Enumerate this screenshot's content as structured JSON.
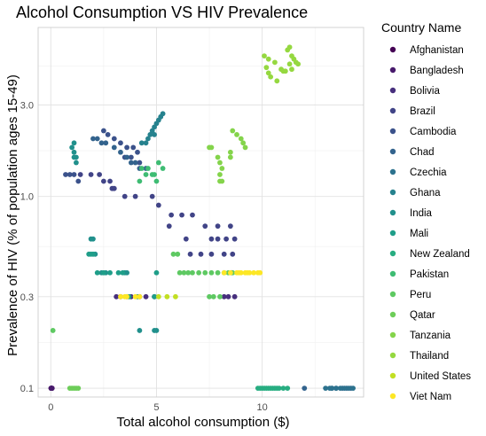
{
  "chart_data": {
    "type": "scatter",
    "title": "Alcohol Consumption VS HIV Prevalence",
    "xlabel": "Total alcohol consumption ($)",
    "ylabel": "Prevalence of HIV (% of population ages 15-49)",
    "x_scale": "linear",
    "y_scale": "log10",
    "xlim": [
      -0.6,
      14.8
    ],
    "ylim": [
      0.09,
      7.6
    ],
    "x_ticks": [
      0,
      5,
      10
    ],
    "x_tick_labels": [
      "0",
      "5",
      "10"
    ],
    "y_ticks": [
      0.1,
      0.3,
      1.0,
      3.0
    ],
    "y_tick_labels": [
      "0.1",
      "0.3",
      "1.0",
      "3.0"
    ],
    "grid": true,
    "legend_placement": "right",
    "legend_title": "Country Name",
    "series": [
      {
        "name": "Afghanistan",
        "color": "#440154",
        "points": [
          [
            0.01,
            0.1
          ],
          [
            0.02,
            0.1
          ],
          [
            0.03,
            0.1
          ],
          [
            0.05,
            0.1
          ],
          [
            0.06,
            0.1
          ]
        ]
      },
      {
        "name": "Bangladesh",
        "color": "#481A6C",
        "points": [
          [
            0.01,
            0.1
          ],
          [
            0.02,
            0.1
          ],
          [
            0.03,
            0.1
          ],
          [
            0.05,
            0.1
          ],
          [
            0.06,
            0.1
          ],
          [
            8.55,
            0.4
          ]
        ]
      },
      {
        "name": "Bolivia",
        "color": "#472F7D",
        "points": [
          [
            3.1,
            0.3
          ],
          [
            3.3,
            0.3
          ],
          [
            3.6,
            0.3
          ],
          [
            3.8,
            0.3
          ],
          [
            4.2,
            0.3
          ],
          [
            4.5,
            0.3
          ],
          [
            4.9,
            0.3
          ],
          [
            8.2,
            0.3
          ],
          [
            8.4,
            0.3
          ],
          [
            8.7,
            0.3
          ]
        ]
      },
      {
        "name": "Brazil",
        "color": "#414487",
        "points": [
          [
            1.4,
            1.3
          ],
          [
            1.9,
            1.3
          ],
          [
            2.3,
            1.3
          ],
          [
            2.5,
            1.2
          ],
          [
            2.8,
            1.2
          ],
          [
            2.9,
            1.1
          ],
          [
            3.0,
            1.1
          ],
          [
            3.5,
            1.0
          ],
          [
            4.0,
            1.0
          ],
          [
            4.8,
            1.0
          ],
          [
            5.1,
            0.9
          ],
          [
            5.7,
            0.8
          ],
          [
            6.2,
            0.8
          ],
          [
            6.7,
            0.8
          ],
          [
            7.3,
            0.7
          ],
          [
            7.9,
            0.6
          ],
          [
            8.3,
            0.6
          ],
          [
            8.7,
            0.6
          ],
          [
            7.6,
            0.6
          ],
          [
            6.4,
            0.6
          ],
          [
            7.9,
            0.7
          ],
          [
            8.5,
            0.7
          ],
          [
            8.6,
            0.5
          ],
          [
            8.2,
            0.5
          ],
          [
            7.6,
            0.5
          ],
          [
            7.1,
            0.5
          ],
          [
            6.6,
            0.5
          ],
          [
            5.6,
            0.7
          ]
        ]
      },
      {
        "name": "Cambodia",
        "color": "#3B528B",
        "points": [
          [
            0.7,
            1.3
          ],
          [
            0.9,
            1.3
          ],
          [
            1.1,
            1.3
          ],
          [
            1.3,
            1.2
          ],
          [
            2.5,
            2.2
          ],
          [
            2.7,
            2.1
          ],
          [
            3.0,
            2.0
          ],
          [
            3.3,
            1.9
          ],
          [
            3.6,
            1.8
          ],
          [
            3.9,
            1.8
          ],
          [
            4.1,
            1.7
          ],
          [
            4.2,
            1.5
          ],
          [
            3.8,
            1.6
          ],
          [
            3.5,
            1.6
          ]
        ]
      },
      {
        "name": "Chad",
        "color": "#33638D",
        "points": [
          [
            2.0,
            2.0
          ],
          [
            2.2,
            2.0
          ],
          [
            2.4,
            1.9
          ],
          [
            2.6,
            1.9
          ],
          [
            3.0,
            1.8
          ],
          [
            3.3,
            1.7
          ],
          [
            3.6,
            1.6
          ],
          [
            3.8,
            1.5
          ],
          [
            4.0,
            1.5
          ],
          [
            4.2,
            1.4
          ],
          [
            4.5,
            1.4
          ],
          [
            13.3,
            0.1
          ],
          [
            13.5,
            0.1
          ],
          [
            13.8,
            0.1
          ],
          [
            14.0,
            0.1
          ],
          [
            14.2,
            0.1
          ],
          [
            12.0,
            0.1
          ]
        ]
      },
      {
        "name": "Czechia",
        "color": "#2C728E",
        "points": [
          [
            13.0,
            0.1
          ],
          [
            13.2,
            0.1
          ],
          [
            13.3,
            0.1
          ],
          [
            13.5,
            0.1
          ],
          [
            13.7,
            0.1
          ],
          [
            13.9,
            0.1
          ],
          [
            14.1,
            0.1
          ],
          [
            14.3,
            0.1
          ]
        ]
      },
      {
        "name": "Ghana",
        "color": "#26828E",
        "points": [
          [
            4.3,
            1.9
          ],
          [
            4.5,
            1.9
          ],
          [
            4.6,
            2.0
          ],
          [
            4.8,
            2.2
          ],
          [
            4.9,
            2.3
          ],
          [
            5.0,
            2.4
          ],
          [
            5.1,
            2.5
          ],
          [
            5.2,
            2.6
          ],
          [
            5.3,
            2.7
          ],
          [
            4.7,
            2.1
          ],
          [
            4.9,
            2.1
          ]
        ]
      },
      {
        "name": "India",
        "color": "#21908C",
        "points": [
          [
            1.0,
            1.8
          ],
          [
            1.1,
            1.7
          ],
          [
            1.1,
            1.6
          ],
          [
            1.2,
            1.5
          ],
          [
            1.2,
            1.6
          ],
          [
            1.1,
            1.9
          ],
          [
            1.9,
            0.6
          ],
          [
            2.0,
            0.6
          ],
          [
            2.1,
            0.5
          ],
          [
            2.4,
            0.4
          ],
          [
            2.6,
            0.4
          ],
          [
            3.5,
            0.4
          ],
          [
            3.6,
            0.4
          ],
          [
            4.2,
            0.2
          ],
          [
            4.9,
            0.2
          ],
          [
            5.0,
            0.2
          ]
        ]
      },
      {
        "name": "Mali",
        "color": "#1F9E89",
        "points": [
          [
            1.8,
            0.5
          ],
          [
            1.9,
            0.5
          ],
          [
            2.0,
            0.5
          ],
          [
            2.2,
            0.4
          ],
          [
            2.5,
            0.4
          ],
          [
            2.8,
            0.4
          ],
          [
            3.2,
            0.4
          ],
          [
            3.4,
            0.4
          ],
          [
            3.7,
            0.3
          ],
          [
            4.1,
            0.3
          ],
          [
            4.9,
            0.3
          ],
          [
            5.0,
            0.4
          ]
        ]
      },
      {
        "name": "New Zealand",
        "color": "#27AD81",
        "points": [
          [
            9.8,
            0.1
          ],
          [
            9.9,
            0.1
          ],
          [
            10.0,
            0.1
          ],
          [
            10.1,
            0.1
          ],
          [
            10.2,
            0.1
          ],
          [
            10.3,
            0.1
          ],
          [
            10.4,
            0.1
          ],
          [
            10.5,
            0.1
          ],
          [
            10.6,
            0.1
          ],
          [
            10.7,
            0.1
          ],
          [
            10.8,
            0.1
          ],
          [
            11.0,
            0.1
          ],
          [
            11.2,
            0.1
          ]
        ]
      },
      {
        "name": "Pakistan",
        "color": "#3EBC73",
        "points": [
          [
            4.5,
            1.3
          ],
          [
            4.6,
            1.4
          ],
          [
            4.8,
            1.3
          ],
          [
            4.9,
            1.3
          ],
          [
            5.0,
            1.2
          ],
          [
            4.2,
            1.2
          ],
          [
            4.3,
            1.4
          ],
          [
            5.1,
            1.5
          ],
          [
            5.3,
            1.4
          ]
        ]
      },
      {
        "name": "Peru",
        "color": "#5EC962",
        "points": [
          [
            0.1,
            0.2
          ],
          [
            6.1,
            0.4
          ],
          [
            6.3,
            0.4
          ],
          [
            6.5,
            0.4
          ],
          [
            6.7,
            0.4
          ],
          [
            7.0,
            0.4
          ],
          [
            7.3,
            0.4
          ],
          [
            7.5,
            0.3
          ],
          [
            7.7,
            0.3
          ],
          [
            8.0,
            0.3
          ],
          [
            7.6,
            0.4
          ],
          [
            7.9,
            0.4
          ],
          [
            8.2,
            0.4
          ],
          [
            8.4,
            0.4
          ],
          [
            8.6,
            0.4
          ],
          [
            5.8,
            0.5
          ],
          [
            6.0,
            0.5
          ]
        ]
      },
      {
        "name": "Qatar",
        "color": "#6DCD59",
        "points": [
          [
            0.9,
            0.1
          ],
          [
            1.0,
            0.1
          ],
          [
            1.1,
            0.1
          ],
          [
            1.2,
            0.1
          ],
          [
            1.3,
            0.1
          ]
        ]
      },
      {
        "name": "Tanzania",
        "color": "#84D44B",
        "points": [
          [
            7.5,
            1.8
          ],
          [
            7.6,
            1.8
          ],
          [
            7.9,
            1.6
          ],
          [
            8.0,
            1.5
          ],
          [
            8.1,
            1.4
          ],
          [
            8.0,
            1.3
          ],
          [
            8.1,
            1.2
          ],
          [
            8.0,
            1.2
          ],
          [
            8.5,
            1.7
          ],
          [
            8.5,
            1.6
          ],
          [
            8.6,
            2.2
          ],
          [
            8.8,
            2.1
          ],
          [
            9.0,
            2.0
          ],
          [
            9.1,
            1.9
          ],
          [
            9.2,
            1.8
          ]
        ]
      },
      {
        "name": "Thailand",
        "color": "#95D840",
        "points": [
          [
            10.1,
            5.4
          ],
          [
            10.3,
            5.2
          ],
          [
            10.6,
            5.0
          ],
          [
            10.9,
            4.6
          ],
          [
            11.1,
            4.5
          ],
          [
            11.4,
            4.6
          ],
          [
            11.6,
            5.0
          ],
          [
            11.7,
            4.9
          ],
          [
            11.5,
            5.2
          ],
          [
            11.4,
            5.4
          ],
          [
            11.2,
            5.8
          ],
          [
            11.3,
            6.0
          ],
          [
            10.2,
            4.7
          ],
          [
            10.3,
            4.4
          ],
          [
            10.4,
            4.2
          ],
          [
            10.7,
            4.0
          ],
          [
            11.0,
            4.5
          ],
          [
            11.3,
            4.9
          ]
        ]
      },
      {
        "name": "United States",
        "color": "#C2DF23",
        "points": [
          [
            5.1,
            0.3
          ],
          [
            5.5,
            0.3
          ],
          [
            5.9,
            0.3
          ]
        ]
      },
      {
        "name": "Viet Nam",
        "color": "#FDE725",
        "points": [
          [
            3.3,
            0.3
          ],
          [
            3.5,
            0.3
          ],
          [
            3.6,
            0.3
          ],
          [
            4.0,
            0.3
          ],
          [
            4.2,
            0.3
          ],
          [
            8.2,
            0.4
          ],
          [
            8.5,
            0.4
          ],
          [
            8.8,
            0.4
          ],
          [
            9.0,
            0.4
          ],
          [
            9.2,
            0.4
          ],
          [
            9.4,
            0.4
          ],
          [
            9.6,
            0.4
          ],
          [
            9.8,
            0.4
          ],
          [
            9.9,
            0.4
          ],
          [
            8.9,
            0.4
          ],
          [
            9.3,
            0.4
          ]
        ]
      }
    ]
  }
}
